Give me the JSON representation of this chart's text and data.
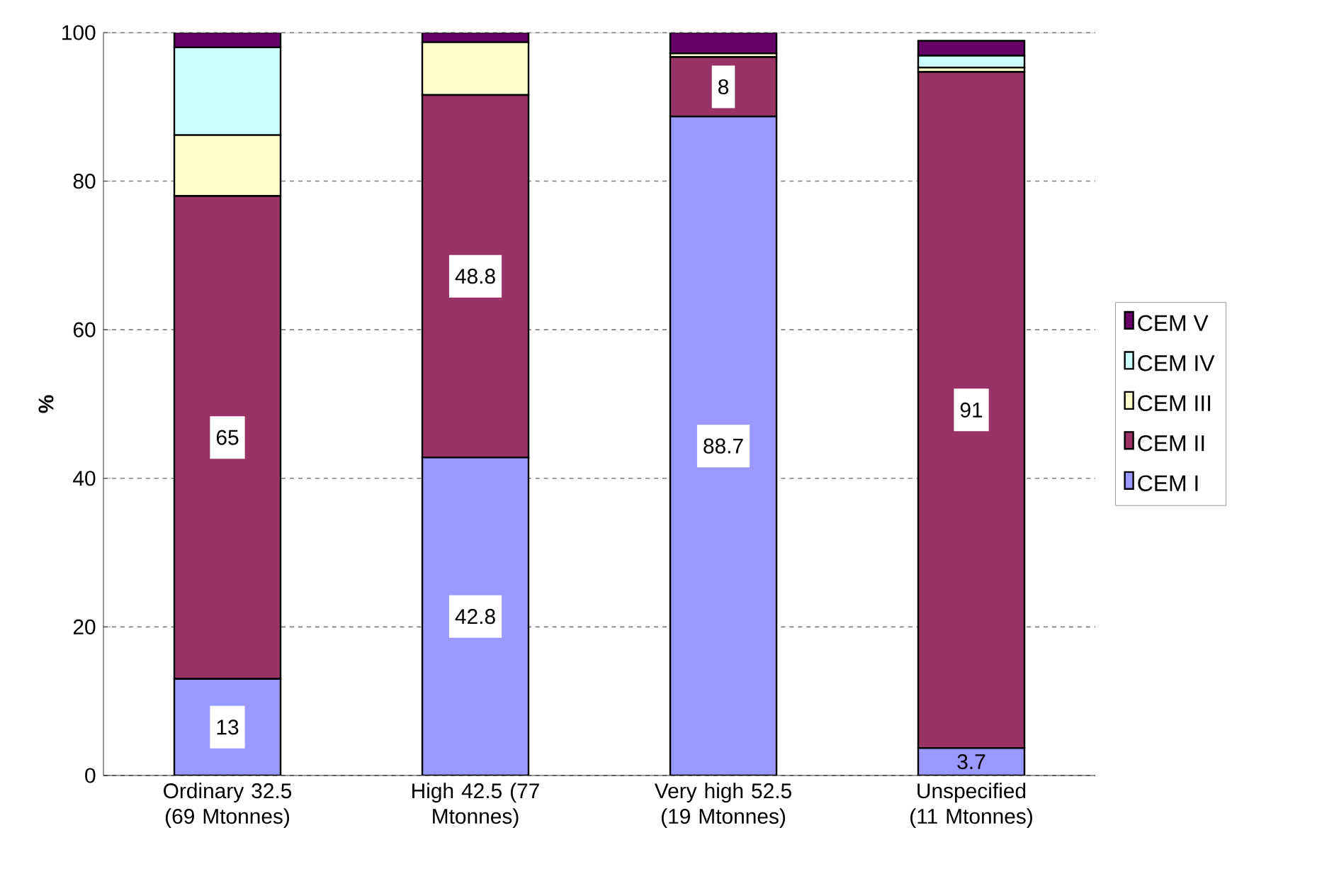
{
  "chart_data": {
    "type": "bar",
    "stacked": true,
    "ylabel": "%",
    "categories": [
      "Ordinary 32.5 (69 Mtonnes)",
      "High 42.5 (77 Mtonnes)",
      "Very high 52.5 (19 Mtonnes)",
      "Unspecified (11 Mtonnes)"
    ],
    "series": [
      {
        "name": "CEM I",
        "color": "#9999ff",
        "values": [
          13,
          42.8,
          88.7,
          3.7
        ],
        "value_labels": [
          "13",
          "42.8",
          "88.7",
          "3.7"
        ]
      },
      {
        "name": "CEM II",
        "color": "#993366",
        "values": [
          65,
          48.8,
          8,
          91
        ],
        "value_labels": [
          "65",
          "48.8",
          "8",
          "91"
        ]
      },
      {
        "name": "CEM III",
        "color": "#ffffcc",
        "values": [
          8.2,
          7.1,
          0.5,
          0.6
        ]
      },
      {
        "name": "CEM IV",
        "color": "#ccffff",
        "values": [
          11.8,
          null,
          null,
          1.6
        ]
      },
      {
        "name": "CEM V",
        "color": "#660066",
        "values": [
          2.0,
          1.3,
          2.8,
          2.0
        ]
      }
    ],
    "ylim": [
      0,
      100
    ],
    "yticks": [
      0,
      20,
      40,
      60,
      80,
      100
    ],
    "grid": "y",
    "legend": "right"
  }
}
